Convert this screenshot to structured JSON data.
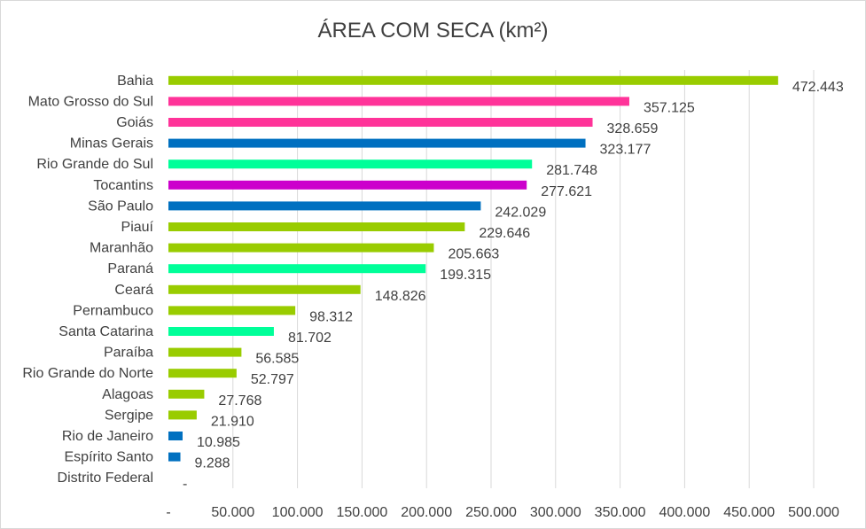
{
  "chart_data": {
    "type": "bar",
    "orientation": "horizontal",
    "title": "ÁREA COM SECA (km²)",
    "xlabel": "",
    "ylabel": "",
    "xlim": [
      0,
      500000
    ],
    "grid": true,
    "legend": "none",
    "x_ticks": [
      0,
      50000,
      100000,
      150000,
      200000,
      250000,
      300000,
      350000,
      400000,
      450000,
      500000
    ],
    "x_tick_labels": [
      "-",
      "50.000",
      "100.000",
      "150.000",
      "200.000",
      "250.000",
      "300.000",
      "350.000",
      "400.000",
      "450.000",
      "500.000"
    ],
    "categories": [
      "Bahia",
      "Mato Grosso do Sul",
      "Goiás",
      "Minas Gerais",
      "Rio Grande do Sul",
      "Tocantins",
      "São Paulo",
      "Piauí",
      "Maranhão",
      "Paraná",
      "Ceará",
      "Pernambuco",
      "Santa Catarina",
      "Paraíba",
      "Rio Grande do Norte",
      "Alagoas",
      "Sergipe",
      "Rio de Janeiro",
      "Espírito Santo",
      "Distrito Federal"
    ],
    "values": [
      472443,
      357125,
      328659,
      323177,
      281748,
      277621,
      242029,
      229646,
      205663,
      199315,
      148826,
      98312,
      81702,
      56585,
      52797,
      27768,
      21910,
      10985,
      9288,
      0
    ],
    "value_labels": [
      "472.443",
      "357.125",
      "328.659",
      "323.177",
      "281.748",
      "277.621",
      "242.029",
      "229.646",
      "205.663",
      "199.315",
      "148.826",
      "98.312",
      "81.702",
      "56.585",
      "52.797",
      "27.768",
      "21.910",
      "10.985",
      "9.288",
      "-"
    ],
    "colors": [
      "#99cc00",
      "#ff3399",
      "#ff3399",
      "#0070c0",
      "#00ff99",
      "#cc00cc",
      "#0070c0",
      "#99cc00",
      "#99cc00",
      "#00ff99",
      "#99cc00",
      "#99cc00",
      "#00ff99",
      "#99cc00",
      "#99cc00",
      "#99cc00",
      "#99cc00",
      "#0070c0",
      "#0070c0",
      "#0070c0"
    ]
  }
}
